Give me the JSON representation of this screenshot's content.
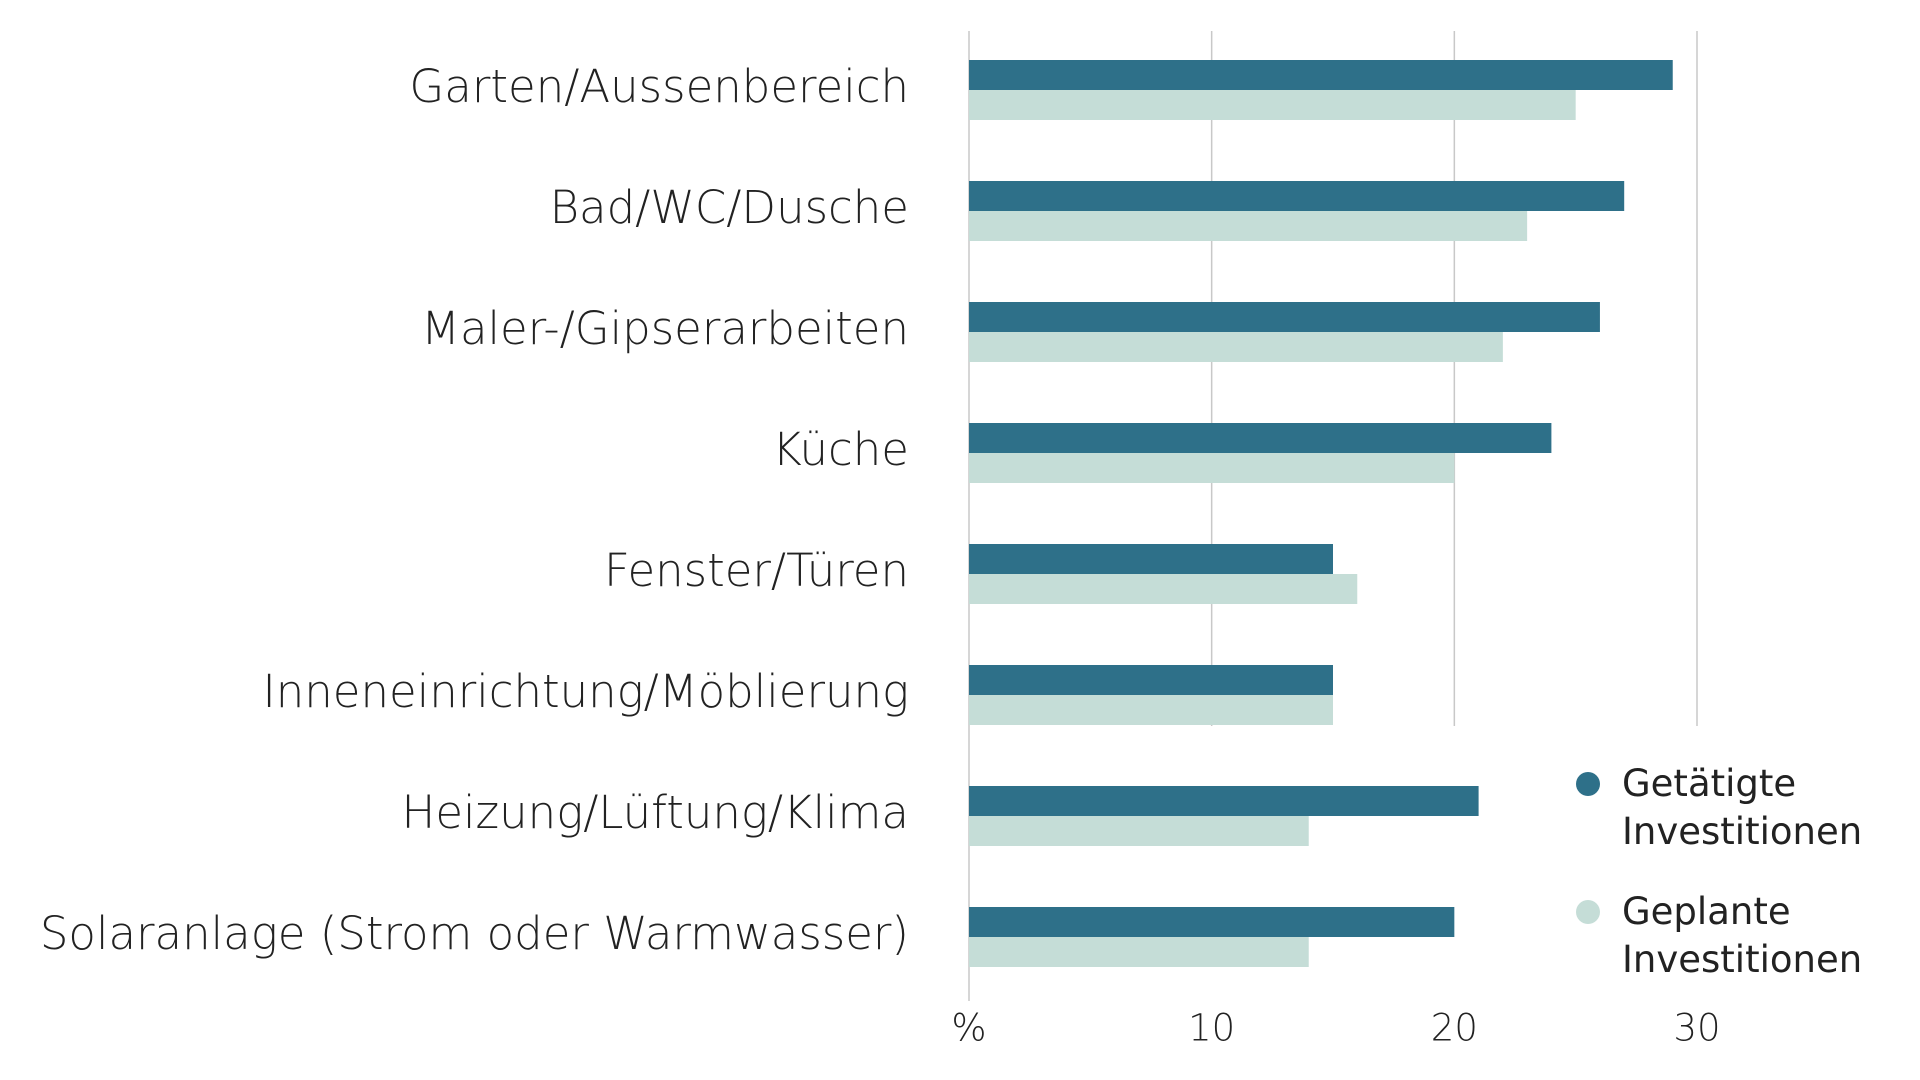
{
  "chart_data": {
    "type": "bar",
    "orientation": "horizontal",
    "categories": [
      "Garten/Aussenbereich",
      "Bad/WC/Dusche",
      "Maler-/Gipserarbeiten",
      "Küche",
      "Fenster/Türen",
      "Inneneinrichtung/Möblierung",
      "Heizung/Lüftung/Klima",
      "Solaranlage (Strom oder Warmwasser)"
    ],
    "series": [
      {
        "name": "Getätigte Investitionen",
        "color": "#2e7089",
        "values": [
          29,
          27,
          26,
          24,
          15,
          15,
          21,
          20
        ]
      },
      {
        "name": "Geplante Investitionen",
        "color": "#c5ddd7",
        "values": [
          25,
          23,
          22,
          20,
          16,
          15,
          14,
          14
        ]
      }
    ],
    "xlim": [
      0,
      30
    ],
    "xticks": [
      {
        "value": 0,
        "label": "%"
      },
      10,
      20,
      30
    ],
    "grid": true,
    "legend": "lower right"
  }
}
